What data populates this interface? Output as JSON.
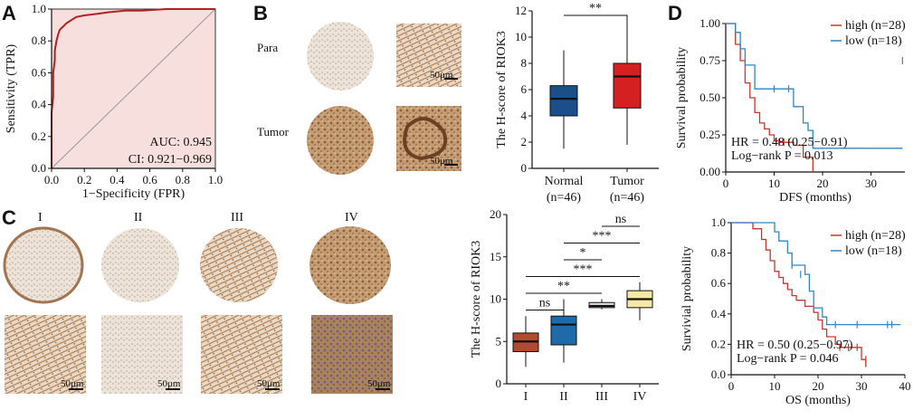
{
  "panels": {
    "A": "A",
    "B": "B",
    "C": "C",
    "D": "D"
  },
  "micro": {
    "b_rows": [
      "Para",
      "Tumor"
    ],
    "c_grades": [
      "I",
      "II",
      "III",
      "IV"
    ],
    "scale_text": "50μm",
    "colors": {
      "tissue_light": "#e4d9cc",
      "tissue_stain": "#b88a5e",
      "tissue_dark": "#8a5a34",
      "tissue_purple": "#8a6c8e",
      "bg_pale": "#efe9e2"
    }
  },
  "chart_data": [
    {
      "id": "roc",
      "type": "line",
      "title": "",
      "xlabel": "1−Specificity (FPR)",
      "ylabel": "Sensitivity (TPR)",
      "xlim": [
        0,
        1.0
      ],
      "ylim": [
        0,
        1.0
      ],
      "xticks": [
        "0.0",
        "0.2",
        "0.4",
        "0.6",
        "0.8",
        "1.0"
      ],
      "yticks": [
        "0.0",
        "0.2",
        "0.4",
        "0.6",
        "0.8",
        "1.0"
      ],
      "series": [
        {
          "name": "ROC",
          "color": "#b22222",
          "x": [
            0,
            0.0,
            0.01,
            0.01,
            0.02,
            0.02,
            0.03,
            0.04,
            0.05,
            0.07,
            0.09,
            0.12,
            0.15,
            0.2,
            0.28,
            0.35,
            0.45,
            0.55,
            0.7,
            0.85,
            1.0
          ],
          "y": [
            0,
            0.35,
            0.45,
            0.6,
            0.68,
            0.74,
            0.8,
            0.84,
            0.87,
            0.89,
            0.91,
            0.93,
            0.95,
            0.96,
            0.97,
            0.98,
            0.99,
            0.99,
            1.0,
            1.0,
            1.0
          ]
        }
      ],
      "annotations": [
        "AUC: 0.945",
        "CI: 0.921−0.969"
      ],
      "fill": "#f6dfdc"
    },
    {
      "id": "box_b",
      "type": "box",
      "ylabel": "The H-score of RIOK3",
      "ylim": [
        0,
        12
      ],
      "yticks": [
        "0",
        "2",
        "4",
        "6",
        "8",
        "10",
        "12"
      ],
      "categories": [
        "Normal",
        "Tumor"
      ],
      "category_sub": [
        "(n=46)",
        "(n=46)"
      ],
      "colors": [
        "#1a4f8a",
        "#d42020"
      ],
      "boxes": [
        {
          "min": 1.5,
          "q1": 4.0,
          "median": 5.3,
          "q3": 6.3,
          "max": 9.0
        },
        {
          "min": 1.8,
          "q1": 4.6,
          "median": 7.0,
          "q3": 8.0,
          "max": 11.7
        }
      ],
      "significance": [
        {
          "from": 0,
          "to": 1,
          "label": "**"
        }
      ]
    },
    {
      "id": "box_c",
      "type": "box",
      "ylabel": "The H-score of RIOK3",
      "ylim": [
        0,
        20
      ],
      "yticks": [
        "0",
        "5",
        "10",
        "15",
        "20"
      ],
      "categories": [
        "I",
        "II",
        "III",
        "IV"
      ],
      "colors": [
        "#b34a2e",
        "#1f6aa8",
        "#e6e6e6",
        "#f5e9a4"
      ],
      "boxes": [
        {
          "min": 2.0,
          "q1": 3.8,
          "median": 5.0,
          "q3": 6.0,
          "max": 8.0
        },
        {
          "min": 2.5,
          "q1": 4.6,
          "median": 7.0,
          "q3": 8.0,
          "max": 10.0
        },
        {
          "min": 8.8,
          "q1": 9.0,
          "median": 9.2,
          "q3": 9.6,
          "max": 10.0
        },
        {
          "min": 7.5,
          "q1": 9.0,
          "median": 10.0,
          "q3": 11.0,
          "max": 12.0
        }
      ],
      "significance": [
        {
          "from": 2,
          "to": 3,
          "label": "ns",
          "level": 0
        },
        {
          "from": 1,
          "to": 3,
          "label": "***",
          "level": 1
        },
        {
          "from": 1,
          "to": 2,
          "label": "*",
          "level": 2
        },
        {
          "from": 0,
          "to": 3,
          "label": "***",
          "level": 3
        },
        {
          "from": 0,
          "to": 2,
          "label": "**",
          "level": 4
        },
        {
          "from": 0,
          "to": 1,
          "label": "ns",
          "level": 5
        }
      ]
    },
    {
      "id": "km_dfs",
      "type": "line",
      "xlabel": "DFS (months)",
      "ylabel": "Survival probability",
      "xlim": [
        0,
        37
      ],
      "ylim": [
        0,
        1.0
      ],
      "xticks": [
        "0",
        "10",
        "20",
        "30"
      ],
      "yticks": [
        "0.00",
        "0.25",
        "0.50",
        "0.75",
        "1.00"
      ],
      "series": [
        {
          "name": "high (n=28)",
          "color": "#c9362c",
          "x": [
            0,
            2,
            3,
            4,
            5,
            6,
            7,
            8,
            9,
            10,
            11,
            12,
            14,
            16,
            18
          ],
          "y": [
            1.0,
            0.86,
            0.75,
            0.6,
            0.5,
            0.4,
            0.33,
            0.29,
            0.25,
            0.21,
            0.2,
            0.2,
            0.18,
            0.1,
            0.0
          ],
          "censor": [
            [
              11,
              0.2
            ],
            [
              12,
              0.2
            ],
            [
              13,
              0.2
            ]
          ]
        },
        {
          "name": "low (n=18)",
          "color": "#2f86c8",
          "x": [
            0,
            2,
            3,
            4,
            6,
            7,
            10,
            14,
            16,
            17,
            18,
            36.5
          ],
          "y": [
            1.0,
            0.94,
            0.83,
            0.72,
            0.56,
            0.56,
            0.56,
            0.44,
            0.33,
            0.28,
            0.16,
            0.16
          ],
          "censor": [
            [
              10,
              0.56
            ],
            [
              13,
              0.56
            ],
            [
              36.5,
              0.75
            ]
          ]
        }
      ],
      "annotations": [
        "HR = 0.48 (0.25−0.91)",
        "Log−rank P = 0.013"
      ]
    },
    {
      "id": "km_os",
      "type": "line",
      "xlabel": "OS (months)",
      "ylabel": "Survivial probability",
      "xlim": [
        0,
        40
      ],
      "ylim": [
        0,
        1.0
      ],
      "xticks": [
        "0",
        "10",
        "20",
        "30",
        "40"
      ],
      "yticks": [
        "0.0",
        "0.2",
        "0.4",
        "0.6",
        "0.8",
        "1.0"
      ],
      "series": [
        {
          "name": "high (n=28)",
          "color": "#c9362c",
          "x": [
            0,
            5,
            7,
            8,
            9,
            10,
            11,
            12,
            13,
            14,
            15,
            17,
            19,
            20,
            21,
            22,
            24,
            25,
            29,
            30,
            31
          ],
          "y": [
            1.0,
            0.96,
            0.89,
            0.82,
            0.75,
            0.68,
            0.64,
            0.6,
            0.56,
            0.52,
            0.49,
            0.45,
            0.41,
            0.36,
            0.3,
            0.25,
            0.2,
            0.18,
            0.18,
            0.1,
            0.05
          ],
          "censor": [
            [
              25,
              0.18
            ],
            [
              27,
              0.18
            ],
            [
              29,
              0.18
            ],
            [
              31,
              0.1
            ]
          ]
        },
        {
          "name": "low (n=18)",
          "color": "#2f86c8",
          "x": [
            0,
            10,
            11,
            13,
            14,
            17,
            18,
            19,
            21,
            22,
            39
          ],
          "y": [
            1.0,
            0.94,
            0.88,
            0.8,
            0.72,
            0.66,
            0.55,
            0.44,
            0.38,
            0.33,
            0.33
          ],
          "censor": [
            [
              14,
              0.72
            ],
            [
              16,
              0.66
            ],
            [
              24,
              0.33
            ],
            [
              29,
              0.33
            ],
            [
              36,
              0.33
            ],
            [
              37,
              0.33
            ]
          ]
        }
      ],
      "annotations": [
        "HR = 0.50 (0.25−0.97)",
        "Log−rank P = 0.046"
      ]
    }
  ]
}
